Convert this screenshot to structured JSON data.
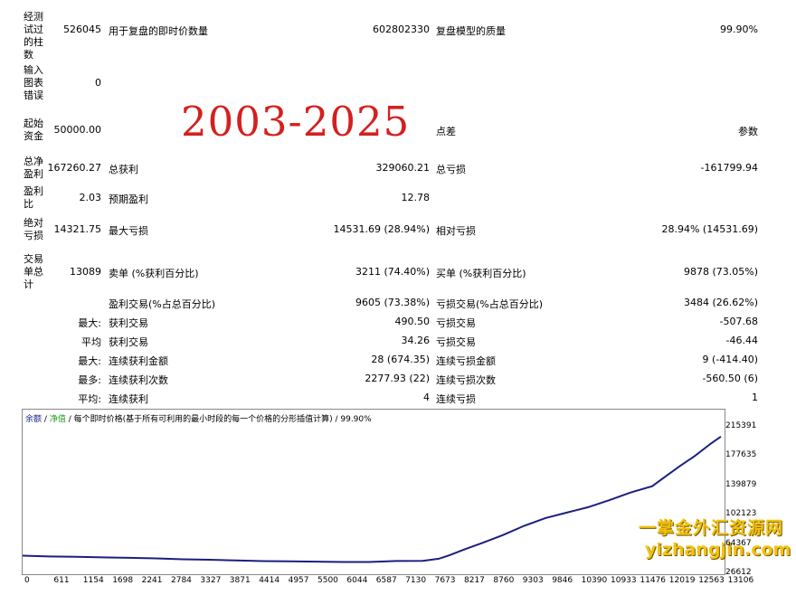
{
  "big_overlay": "2003-2025",
  "rows": [
    {
      "label": "经测试过的柱数",
      "value": "526045",
      "c2": "用于复盘的即时价数量",
      "v2": "602802330",
      "c3": "复盘模型的质量",
      "v3": "99.90%"
    },
    {
      "label": "输入图表错误",
      "value": "0"
    },
    {
      "label": "起始资金",
      "value": "50000.00",
      "c3": "点差",
      "v3": "参数"
    },
    {
      "label": "总净盈利",
      "value": "167260.27",
      "c2": "总获利",
      "v2": "329060.21",
      "c3": "总亏损",
      "v3": "-161799.94"
    },
    {
      "label": "盈利比",
      "value": "2.03",
      "c2": "预期盈利",
      "v2": "12.78"
    },
    {
      "label": "绝对亏损",
      "value": "14321.75",
      "c2": "最大亏损",
      "v2": "14531.69 (28.94%)",
      "c3": "相对亏损",
      "v3": "28.94% (14531.69)"
    },
    {
      "label": "交易单总计",
      "value": "13089",
      "c2": "卖单 (%获利百分比)",
      "v2": "3211 (74.40%)",
      "c3": "买单 (%获利百分比)",
      "v3": "9878 (73.05%)"
    },
    {
      "c2": "盈利交易(%占总百分比)",
      "v2": "9605 (73.38%)",
      "c3": "亏损交易(%占总百分比)",
      "v3": "3484 (26.62%)"
    },
    {
      "value": "最大:",
      "c2": "获利交易",
      "v2": "490.50",
      "c3": "亏损交易",
      "v3": "-507.68"
    },
    {
      "value": "平均",
      "c2": "获利交易",
      "v2": "34.26",
      "c3": "亏损交易",
      "v3": "-46.44"
    },
    {
      "value": "最大:",
      "c2": "连续获利金额",
      "v2": "28 (674.35)",
      "c3": "连续亏损金额",
      "v3": "9 (-414.40)"
    },
    {
      "value": "最多:",
      "c2": "连续获利次数",
      "v2": "2277.93 (22)",
      "c3": "连续亏损次数",
      "v3": "-560.50 (6)"
    },
    {
      "value": "平均:",
      "c2": "连续获利",
      "v2": "4",
      "c3": "连续亏损",
      "v3": "1"
    }
  ],
  "chart_legend": {
    "balance": "余额",
    "sep1": "/",
    "equity": "净值",
    "text": "/ 每个即时价格(基于所有可利用的最小时段的每一个价格的分形插值计算) / 99.90%"
  },
  "chart_data": {
    "type": "line",
    "x_ticks": [
      "0",
      "611",
      "1154",
      "1698",
      "2241",
      "2784",
      "3327",
      "3871",
      "4414",
      "4957",
      "5500",
      "6044",
      "6587",
      "7130",
      "7673",
      "8217",
      "8760",
      "9303",
      "9846",
      "10390",
      "10933",
      "11476",
      "12019",
      "12563",
      "13106"
    ],
    "y_ticks": [
      "215391",
      "177635",
      "139879",
      "102123",
      "64367",
      "26612"
    ],
    "ylim": [
      26612,
      215391
    ],
    "xlim": [
      0,
      13089
    ],
    "series": [
      {
        "color": "#1a1f80",
        "x": [
          0,
          500,
          1000,
          1500,
          2000,
          2500,
          3000,
          3500,
          4000,
          4500,
          5000,
          5500,
          6000,
          6500,
          7000,
          7500,
          7800,
          8000,
          8300,
          8600,
          9000,
          9400,
          9800,
          10200,
          10600,
          11000,
          11400,
          11800,
          12000,
          12300,
          12600,
          12900,
          13089
        ],
        "y": [
          50500,
          49500,
          49000,
          48300,
          47700,
          47000,
          45800,
          45300,
          44300,
          43500,
          43200,
          42800,
          42400,
          42300,
          43600,
          43800,
          46500,
          51000,
          59000,
          66500,
          77000,
          89000,
          99000,
          106000,
          113000,
          122000,
          132000,
          140000,
          150000,
          165000,
          179000,
          195000,
          204000
        ]
      }
    ]
  },
  "watermark": {
    "line1": "一掌金外汇资源网",
    "line2": "yizhangjin.com"
  }
}
